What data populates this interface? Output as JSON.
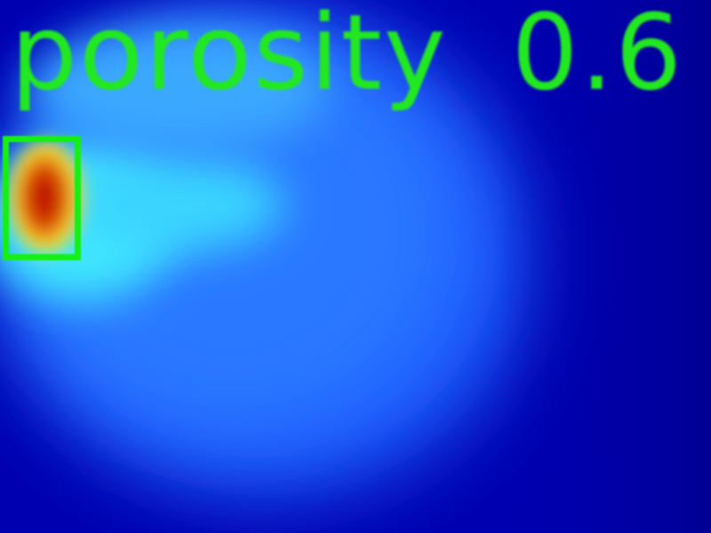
{
  "overlay": {
    "label_word": "porosity",
    "label_value": "0.6"
  },
  "detection": {
    "box_color": "#14f014"
  },
  "colormap": {
    "background": "#0000a8",
    "mid": "#2a6cff",
    "highlight": "#38e8ff",
    "hot": "#c81400"
  }
}
